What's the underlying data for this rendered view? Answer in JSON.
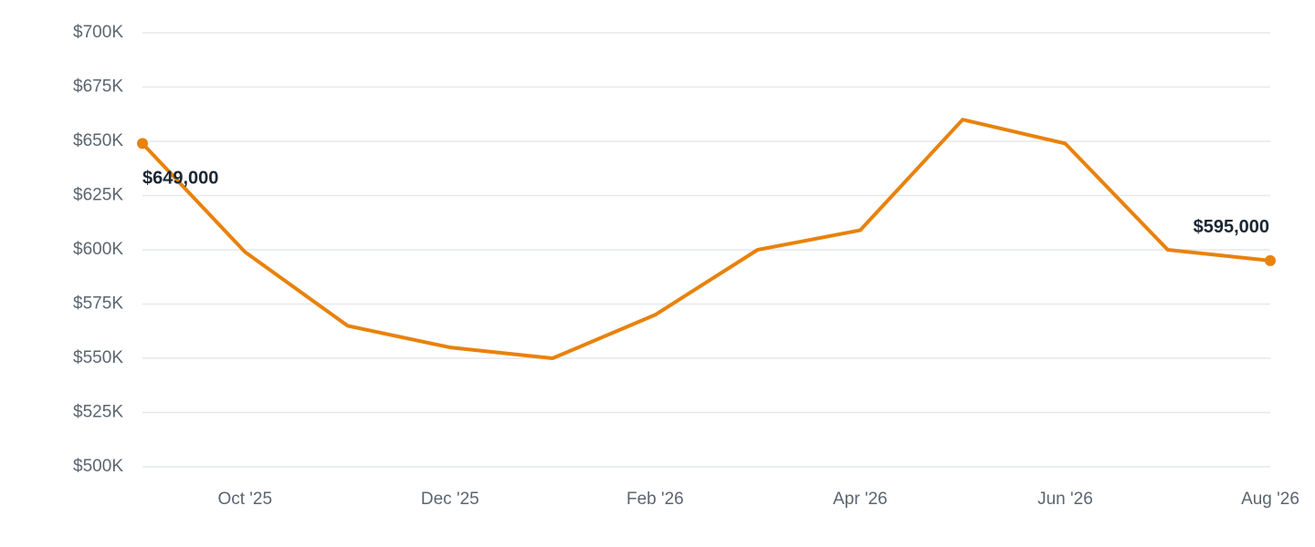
{
  "chart_data": {
    "type": "line",
    "categories": [
      null,
      "Oct '25",
      null,
      "Dec '25",
      null,
      "Feb '26",
      null,
      "Apr '26",
      null,
      "Jun '26",
      null,
      "Aug '26"
    ],
    "series": [
      {
        "color": "#e8820c",
        "values": [
          649000,
          599000,
          565000,
          555000,
          550000,
          570000,
          600000,
          609000,
          660000,
          649000,
          600000,
          595000
        ],
        "value_labels": [
          "$649,000",
          null,
          null,
          null,
          null,
          null,
          null,
          null,
          null,
          null,
          null,
          "$595,000"
        ]
      }
    ],
    "ylim": [
      500000,
      700000
    ],
    "yticks": [
      {
        "value": 500000,
        "label": "$500K"
      },
      {
        "value": 525000,
        "label": "$525K"
      },
      {
        "value": 550000,
        "label": "$550K"
      },
      {
        "value": 575000,
        "label": "$575K"
      },
      {
        "value": 600000,
        "label": "$600K"
      },
      {
        "value": 625000,
        "label": "$625K"
      },
      {
        "value": 650000,
        "label": "$650K"
      },
      {
        "value": 675000,
        "label": "$675K"
      },
      {
        "value": 700000,
        "label": "$700K"
      }
    ],
    "grid": true
  }
}
